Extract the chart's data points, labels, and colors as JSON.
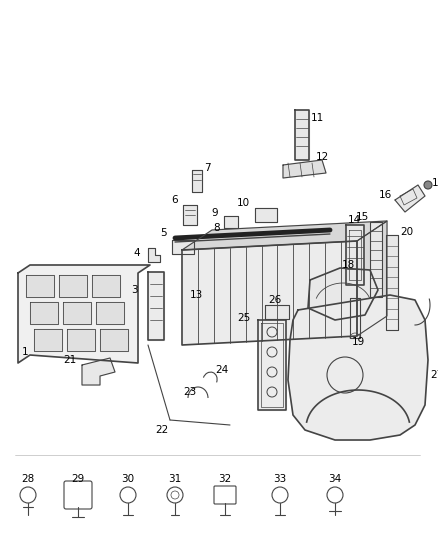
{
  "bg_color": "#ffffff",
  "line_color": "#444444",
  "label_color": "#000000",
  "figsize": [
    4.38,
    5.33
  ],
  "dpi": 100
}
